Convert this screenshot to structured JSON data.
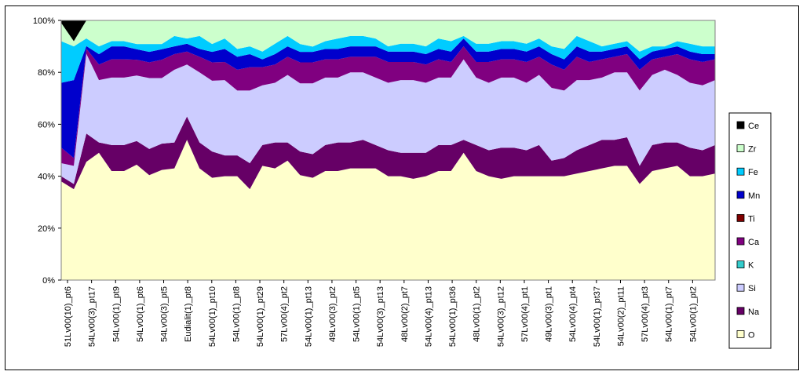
{
  "chart_data": {
    "type": "area",
    "stacked": "percent",
    "title": "",
    "xlabel": "",
    "ylabel": "",
    "ylim": [
      0,
      100
    ],
    "y_ticks": [
      "0%",
      "20%",
      "40%",
      "60%",
      "80%",
      "100%"
    ],
    "grid": false,
    "legend_position": "right",
    "x_labels": [
      "51Lv00(10)_pt6",
      "54Lv00(3)_pt17",
      "54Lv00(1)_pt9",
      "54Lv00(1)_pt6",
      "54Lv00(3)_pt5",
      "Eudialit(1)_pt8",
      "54Lv00(1)_pt10",
      "54Lv00(1)_pt8",
      "54Lv00(1)_pt29",
      "57Lv00(4)_pt2",
      "54Lv00(1)_pt13",
      "49Lv00(3)_pt2",
      "54Lv00(1)_pt5",
      "54Lv00(3)_pt13",
      "48Lv00(2)_pt7",
      "54Lv00(4)_pt13",
      "54Lv00(1)_pt36",
      "48Lv00(1)_pt2",
      "54Lv00(3)_pt12",
      "57Lv00(4)_pt1",
      "49Lv00(3)_pt1",
      "54Lv00(4)_pt4",
      "54Lv00(1)_pt37",
      "54Lv00(2)_pt11",
      "57Lv00(4)_pt3",
      "54Lv00(1)_pt7",
      "54Lv00(1)_pt2"
    ],
    "series": [
      {
        "name": "O",
        "color": "#FFFFCC",
        "values": [
          38,
          35,
          46,
          49,
          42,
          42,
          44,
          40,
          42,
          43,
          54,
          43,
          39,
          40,
          40,
          35,
          44,
          43,
          46,
          40,
          39,
          42,
          42,
          43,
          43,
          43,
          40,
          40,
          39,
          40,
          42,
          42,
          49,
          42,
          40,
          39,
          40,
          40,
          40,
          40,
          40,
          41,
          42,
          43,
          44,
          44,
          37,
          42,
          43,
          44,
          40,
          40,
          41
        ]
      },
      {
        "name": "Na",
        "color": "#660066",
        "values": [
          2,
          2,
          11,
          4,
          10,
          10,
          9,
          10,
          10,
          10,
          9,
          10,
          10,
          8,
          8,
          10,
          8,
          10,
          7,
          9,
          9,
          10,
          11,
          10,
          11,
          9,
          10,
          9,
          10,
          9,
          10,
          10,
          5,
          10,
          10,
          12,
          11,
          10,
          12,
          6,
          7,
          9,
          10,
          11,
          10,
          11,
          7,
          10,
          10,
          9,
          11,
          10,
          11
        ]
      },
      {
        "name": "Si",
        "color": "#CCCCFF",
        "values": [
          5,
          7,
          31,
          24,
          26,
          26,
          25,
          27,
          25,
          28,
          20,
          27,
          27,
          29,
          25,
          28,
          23,
          23,
          26,
          26,
          27,
          26,
          25,
          27,
          26,
          26,
          26,
          28,
          28,
          27,
          26,
          26,
          31,
          26,
          26,
          27,
          27,
          26,
          27,
          28,
          26,
          27,
          25,
          24,
          26,
          25,
          29,
          27,
          28,
          26,
          25,
          25,
          25
        ]
      },
      {
        "name": "K",
        "color": "#33CCCC",
        "values": [
          0,
          0,
          0,
          0,
          0,
          0,
          0,
          0,
          0,
          0,
          0,
          0,
          0,
          0,
          0,
          0,
          0,
          0,
          0,
          0,
          0,
          0,
          0,
          0,
          0,
          0,
          0,
          0,
          0,
          0,
          0,
          0,
          0,
          0,
          0,
          0,
          0,
          0,
          0,
          0,
          0,
          0,
          0,
          0,
          0,
          0,
          0,
          0,
          0,
          0,
          0,
          0,
          0
        ]
      },
      {
        "name": "Ca",
        "color": "#800080",
        "values": [
          6,
          3,
          2,
          6,
          7,
          7,
          6,
          6,
          7,
          6,
          5,
          6,
          7,
          7,
          8,
          9,
          7,
          7,
          7,
          8,
          8,
          7,
          7,
          6,
          6,
          8,
          8,
          7,
          7,
          7,
          7,
          6,
          5,
          6,
          8,
          7,
          7,
          8,
          7,
          9,
          8,
          9,
          7,
          7,
          6,
          7,
          8,
          6,
          5,
          8,
          9,
          9,
          8
        ]
      },
      {
        "name": "Ti",
        "color": "#800000",
        "values": [
          0,
          0,
          0,
          0,
          0,
          0,
          0,
          0,
          0,
          0,
          0,
          0,
          0,
          0,
          0,
          0,
          0,
          0,
          0,
          0,
          0,
          0,
          0,
          0,
          0,
          0,
          0,
          0,
          0,
          0,
          0,
          0,
          0,
          0,
          0,
          0,
          0,
          0,
          0,
          0,
          0,
          0,
          0,
          0,
          0,
          0,
          0,
          0,
          0,
          0,
          0,
          0,
          0
        ]
      },
      {
        "name": "Mn",
        "color": "#0000CC",
        "values": [
          25,
          30,
          1,
          4,
          5,
          5,
          4,
          4,
          4,
          3,
          3,
          3,
          4,
          5,
          5,
          5,
          3,
          4,
          4,
          4,
          4,
          4,
          4,
          4,
          4,
          4,
          4,
          4,
          4,
          4,
          4,
          4,
          3,
          4,
          4,
          4,
          4,
          4,
          4,
          4,
          4,
          4,
          4,
          3,
          3,
          3,
          4,
          3,
          3,
          3,
          3,
          3,
          2
        ]
      },
      {
        "name": "Fe",
        "color": "#00CCFF",
        "values": [
          16,
          13,
          3,
          3,
          2,
          2,
          2,
          3,
          2,
          4,
          2,
          5,
          3,
          4,
          3,
          3,
          3,
          4,
          4,
          3,
          2,
          3,
          4,
          4,
          4,
          3,
          2,
          3,
          3,
          3,
          4,
          4,
          1,
          3,
          3,
          3,
          3,
          3,
          3,
          3,
          4,
          4,
          4,
          2,
          2,
          2,
          3,
          2,
          1,
          2,
          3,
          3,
          3
        ]
      },
      {
        "name": "Zr",
        "color": "#CCFFCC",
        "values": [
          7,
          2,
          7,
          10,
          8,
          8,
          9,
          9,
          9,
          6,
          7,
          6,
          9,
          7,
          11,
          10,
          12,
          9,
          6,
          9,
          10,
          8,
          7,
          6,
          6,
          7,
          10,
          9,
          9,
          10,
          7,
          8,
          6,
          9,
          9,
          8,
          8,
          9,
          7,
          10,
          11,
          6,
          8,
          10,
          9,
          8,
          12,
          10,
          10,
          8,
          9,
          10,
          10
        ]
      },
      {
        "name": "Ce",
        "color": "#000000",
        "values": [
          1,
          8,
          0,
          0,
          0,
          0,
          0,
          0,
          0,
          0,
          0,
          0,
          0,
          0,
          0,
          0,
          0,
          0,
          0,
          0,
          0,
          0,
          0,
          0,
          0,
          0,
          0,
          0,
          0,
          0,
          0,
          0,
          0,
          0,
          0,
          0,
          0,
          0,
          0,
          0,
          0,
          0,
          0,
          0,
          0,
          0,
          0,
          0,
          0,
          0,
          0,
          0,
          0
        ]
      }
    ],
    "legend_order": [
      "Ce",
      "Zr",
      "Fe",
      "Mn",
      "Ti",
      "Ca",
      "K",
      "Si",
      "Na",
      "O"
    ]
  }
}
